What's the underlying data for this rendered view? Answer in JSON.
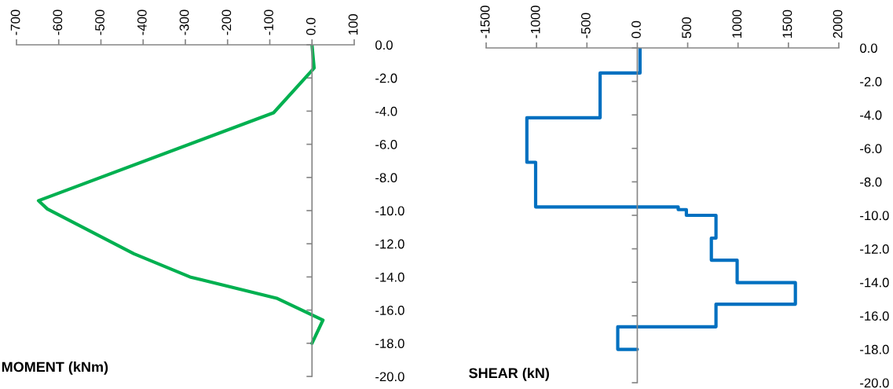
{
  "chart_data": [
    {
      "type": "line",
      "xlabel": "MOMENT (kNm)",
      "series": [
        {
          "color": "#00b050",
          "x": [
            0,
            5,
            -91,
            -648,
            -627,
            -422,
            -289,
            -82,
            26,
            0
          ],
          "values": [
            0,
            -1.4,
            -4.1,
            -9.4,
            -9.9,
            -12.6,
            -14.0,
            -15.3,
            -16.6,
            -18.0
          ]
        }
      ],
      "xlim": [
        -700,
        100
      ],
      "xticks": [
        -700,
        -600,
        -500,
        -400,
        -300,
        -200,
        -100,
        {
          "value": 0,
          "label": "0.0"
        },
        100
      ],
      "ylim": [
        -20,
        0
      ],
      "yticks": [
        {
          "value": 0,
          "label": "0.0"
        },
        {
          "value": -2,
          "label": "-2.0"
        },
        {
          "value": -4,
          "label": "-4.0"
        },
        {
          "value": -6,
          "label": "-6.0"
        },
        {
          "value": -8,
          "label": "-8.0"
        },
        {
          "value": -10,
          "label": "-10.0"
        },
        {
          "value": -12,
          "label": "-12.0"
        },
        {
          "value": -14,
          "label": "-14.0"
        },
        {
          "value": -16,
          "label": "-16.0"
        },
        {
          "value": -18,
          "label": "-18.0"
        },
        {
          "value": -20,
          "label": "-20.0"
        }
      ]
    },
    {
      "type": "line",
      "xlabel": "SHEAR (kN)",
      "series": [
        {
          "color": "#0070c0",
          "x": [
            27,
            27,
            -369,
            -369,
            -1096,
            -1096,
            -1009,
            -1009,
            406,
            406,
            487,
            487,
            781,
            781,
            735,
            735,
            991,
            991,
            1569,
            1569,
            781,
            781,
            -194,
            -194,
            0
          ],
          "values": [
            0,
            -1.5,
            -1.5,
            -4.17,
            -4.17,
            -6.83,
            -6.83,
            -9.5,
            -9.5,
            -9.66,
            -9.66,
            -10.0,
            -10.0,
            -11.36,
            -11.36,
            -12.68,
            -12.68,
            -14.02,
            -14.02,
            -15.31,
            -15.31,
            -16.66,
            -16.66,
            -18.01,
            -18.01
          ]
        }
      ],
      "xlim": [
        -1500,
        2000
      ],
      "xticks": [
        -1500,
        -1000,
        -500,
        {
          "value": 0,
          "label": "0.0"
        },
        500,
        1000,
        1500,
        2000
      ],
      "ylim": [
        -20,
        0
      ],
      "yticks": [
        {
          "value": 0,
          "label": "0.0"
        },
        {
          "value": -2,
          "label": "-2.0"
        },
        {
          "value": -4,
          "label": "-4.0"
        },
        {
          "value": -6,
          "label": "-6.0"
        },
        {
          "value": -8,
          "label": "-8.0"
        },
        {
          "value": -10,
          "label": "-10.0"
        },
        {
          "value": -12,
          "label": "-12.0"
        },
        {
          "value": -14,
          "label": "-14.0"
        },
        {
          "value": -16,
          "label": "-16.0"
        },
        {
          "value": -18,
          "label": "-18.0"
        },
        {
          "value": -20,
          "label": "-20.0"
        }
      ]
    }
  ]
}
